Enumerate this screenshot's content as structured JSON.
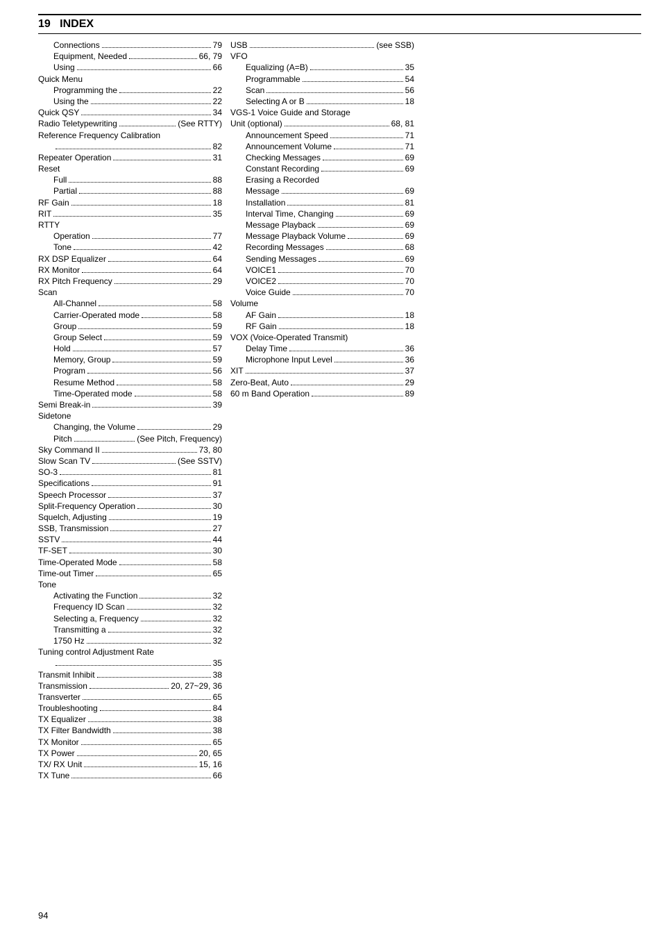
{
  "section_number": "19",
  "section_title": "INDEX",
  "page_footer": "94",
  "columns": [
    [
      {
        "label": "Connections",
        "page": "79",
        "sub": true
      },
      {
        "label": "Equipment, Needed",
        "page": "66, 79",
        "sub": true
      },
      {
        "label": "Using",
        "page": "66",
        "sub": true
      },
      {
        "label": "Quick Menu",
        "page": "",
        "header": true
      },
      {
        "label": "Programming the",
        "page": "22",
        "sub": true
      },
      {
        "label": "Using the",
        "page": "22",
        "sub": true
      },
      {
        "label": "Quick QSY",
        "page": "34"
      },
      {
        "label": "Radio Teletypewriting",
        "page": "(See RTTY)"
      },
      {
        "label": "Reference Frequency Calibration",
        "page": "",
        "header": true
      },
      {
        "label": "",
        "page": "82",
        "sub": true,
        "contdots": true
      },
      {
        "label": "Repeater Operation",
        "page": "31"
      },
      {
        "label": "Reset",
        "page": "",
        "header": true
      },
      {
        "label": "Full",
        "page": "88",
        "sub": true
      },
      {
        "label": "Partial",
        "page": "88",
        "sub": true
      },
      {
        "label": "RF Gain",
        "page": "18"
      },
      {
        "label": "RIT",
        "page": "35"
      },
      {
        "label": "RTTY",
        "page": "",
        "header": true
      },
      {
        "label": "Operation",
        "page": "77",
        "sub": true
      },
      {
        "label": "Tone",
        "page": "42",
        "sub": true
      },
      {
        "label": "RX DSP Equalizer",
        "page": "64"
      },
      {
        "label": "RX Monitor",
        "page": "64"
      },
      {
        "label": "RX Pitch Frequency",
        "page": "29"
      },
      {
        "label": "Scan",
        "page": "",
        "header": true
      },
      {
        "label": "All-Channel",
        "page": "58",
        "sub": true
      },
      {
        "label": "Carrier-Operated mode",
        "page": "58",
        "sub": true
      },
      {
        "label": "Group",
        "page": "59",
        "sub": true
      },
      {
        "label": "Group Select",
        "page": "59",
        "sub": true
      },
      {
        "label": "Hold",
        "page": "57",
        "sub": true
      },
      {
        "label": "Memory, Group",
        "page": "59",
        "sub": true
      },
      {
        "label": "Program",
        "page": "56",
        "sub": true
      },
      {
        "label": "Resume Method",
        "page": "58",
        "sub": true
      },
      {
        "label": "Time-Operated mode",
        "page": "58",
        "sub": true
      },
      {
        "label": "Semi Break-in",
        "page": "39"
      },
      {
        "label": "Sidetone",
        "page": "",
        "header": true
      },
      {
        "label": "Changing, the Volume",
        "page": "29",
        "sub": true
      },
      {
        "label": "Pitch",
        "page": "(See Pitch, Frequency)",
        "sub": true
      },
      {
        "label": "Sky Command II",
        "page": "73, 80"
      },
      {
        "label": "Slow Scan TV",
        "page": "(See SSTV)"
      },
      {
        "label": "SO-3",
        "page": "81"
      },
      {
        "label": "Specifications",
        "page": "91"
      },
      {
        "label": "Speech Processor",
        "page": "37"
      },
      {
        "label": "Split-Frequency Operation",
        "page": "30"
      },
      {
        "label": "Squelch, Adjusting",
        "page": "19"
      },
      {
        "label": "SSB, Transmission",
        "page": "27"
      },
      {
        "label": "SSTV",
        "page": "44"
      },
      {
        "label": "TF-SET",
        "page": "30"
      },
      {
        "label": "Time-Operated Mode",
        "page": "58"
      },
      {
        "label": "Time-out Timer",
        "page": "65"
      },
      {
        "label": "Tone",
        "page": "",
        "header": true
      },
      {
        "label": "Activating the Function",
        "page": "32",
        "sub": true
      },
      {
        "label": "Frequency ID Scan",
        "page": "32",
        "sub": true
      },
      {
        "label": "Selecting a, Frequency",
        "page": "32",
        "sub": true
      },
      {
        "label": "Transmitting a",
        "page": "32",
        "sub": true
      },
      {
        "label": "1750 Hz",
        "page": "32",
        "sub": true
      },
      {
        "label": "Tuning control Adjustment Rate",
        "page": "",
        "header": true
      },
      {
        "label": "",
        "page": "35",
        "sub": true,
        "contdots": true
      },
      {
        "label": "Transmit Inhibit",
        "page": "38"
      },
      {
        "label": "Transmission",
        "page": "20, 27~29, 36"
      },
      {
        "label": "Transverter",
        "page": "65"
      },
      {
        "label": "Troubleshooting",
        "page": "84"
      },
      {
        "label": "TX Equalizer",
        "page": "38"
      },
      {
        "label": "TX Filter Bandwidth",
        "page": "38"
      },
      {
        "label": "TX Monitor",
        "page": "65"
      },
      {
        "label": "TX Power",
        "page": "20, 65"
      },
      {
        "label": "TX/ RX Unit",
        "page": "15, 16"
      },
      {
        "label": "TX Tune",
        "page": "66"
      }
    ],
    [
      {
        "label": "USB",
        "page": "(see SSB)"
      },
      {
        "label": "VFO",
        "page": "",
        "header": true
      },
      {
        "label": "Equalizing (A=B)",
        "page": "35",
        "sub": true
      },
      {
        "label": "Programmable",
        "page": "54",
        "sub": true
      },
      {
        "label": "Scan",
        "page": "56",
        "sub": true
      },
      {
        "label": "Selecting A or B",
        "page": "18",
        "sub": true
      },
      {
        "label": "VGS-1 Voice Guide and Storage",
        "page": "",
        "header": true
      },
      {
        "label": "Unit (optional)",
        "page": "68, 81"
      },
      {
        "label": "Announcement Speed",
        "page": "71",
        "sub": true
      },
      {
        "label": "Announcement Volume",
        "page": "71",
        "sub": true
      },
      {
        "label": "Checking Messages",
        "page": "69",
        "sub": true
      },
      {
        "label": "Constant Recording",
        "page": "69",
        "sub": true
      },
      {
        "label": "Erasing a Recorded",
        "page": "",
        "sub": true,
        "header": true
      },
      {
        "label": "Message",
        "page": "69",
        "sub": true
      },
      {
        "label": "Installation",
        "page": "81",
        "sub": true
      },
      {
        "label": "Interval Time, Changing",
        "page": "69",
        "sub": true
      },
      {
        "label": "Message Playback",
        "page": "69",
        "sub": true
      },
      {
        "label": "Message Playback Volume",
        "page": "69",
        "sub": true
      },
      {
        "label": "Recording Messages",
        "page": "68",
        "sub": true
      },
      {
        "label": "Sending Messages",
        "page": "69",
        "sub": true
      },
      {
        "label": "VOICE1",
        "page": "70",
        "sub": true
      },
      {
        "label": "VOICE2",
        "page": "70",
        "sub": true
      },
      {
        "label": "Voice Guide",
        "page": "70",
        "sub": true
      },
      {
        "label": "Volume",
        "page": "",
        "header": true
      },
      {
        "label": "AF Gain",
        "page": "18",
        "sub": true
      },
      {
        "label": "RF Gain",
        "page": "18",
        "sub": true
      },
      {
        "label": "VOX (Voice-Operated Transmit)",
        "page": "",
        "header": true
      },
      {
        "label": "Delay Time",
        "page": "36",
        "sub": true
      },
      {
        "label": "Microphone Input Level",
        "page": "36",
        "sub": true
      },
      {
        "label": "XIT",
        "page": "37"
      },
      {
        "label": "Zero-Beat, Auto",
        "page": "29"
      },
      {
        "label": " ",
        "page": "",
        "header": true
      },
      {
        "label": "60 m Band Operation",
        "page": "89"
      }
    ]
  ]
}
